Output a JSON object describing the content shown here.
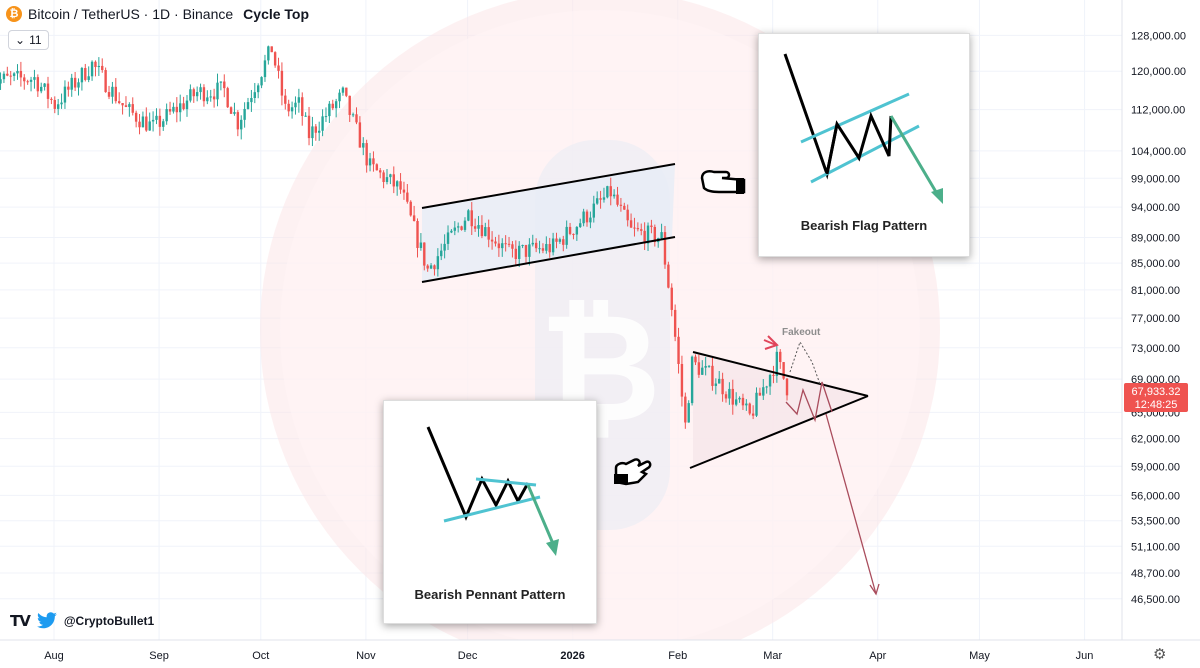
{
  "header": {
    "symbol": "Bitcoin / TetherUS · 1D · Binance",
    "title": "Cycle Top",
    "coin_icon": "₿",
    "interval_value": "11"
  },
  "watermark": {
    "brand": "TV",
    "handle": "@CryptoBullet1"
  },
  "cards": {
    "flag_caption": "Bearish Flag Pattern",
    "pennant_caption": "Bearish Pennant Pattern"
  },
  "annotations": {
    "fakeout": "Fakeout"
  },
  "price_badge": {
    "price": "67,933.32",
    "countdown": "12:48:25",
    "color": "#ef5350"
  },
  "colors": {
    "up": "#26a69a",
    "down": "#ef5350",
    "pattern_line": "#000000",
    "flag_teal": "#4fc3d1",
    "arrow_green": "#4caf8a",
    "projection": "#a94c5c"
  },
  "chart_data": {
    "type": "candlestick",
    "log_scale": true,
    "x_ticks": [
      "Aug",
      "Sep",
      "Oct",
      "Nov",
      "Dec",
      "2026",
      "Feb",
      "Mar",
      "Apr",
      "May",
      "Jun"
    ],
    "y_ticks": [
      "128,000.00",
      "120,000.00",
      "112,000.00",
      "104,000.00",
      "99,000.00",
      "94,000.00",
      "89,000.00",
      "85,000.00",
      "81,000.00",
      "77,000.00",
      "73,000.00",
      "69,000.00",
      "65,000.00",
      "62,000.00",
      "59,000.00",
      "56,000.00",
      "53,500.00",
      "51,100.00",
      "48,700.00",
      "46,500.00"
    ],
    "ylim": [
      45000,
      133000
    ],
    "price_path": [
      [
        "2025-07-15",
        118000
      ],
      [
        "2025-07-28",
        118500
      ],
      [
        "2025-08-03",
        113000
      ],
      [
        "2025-08-14",
        121500
      ],
      [
        "2025-08-24",
        112000
      ],
      [
        "2025-09-01",
        108500
      ],
      [
        "2025-09-14",
        115500
      ],
      [
        "2025-09-22",
        116000
      ],
      [
        "2025-09-26",
        109500
      ],
      [
        "2025-10-06",
        125000
      ],
      [
        "2025-10-10",
        112000
      ],
      [
        "2025-10-14",
        113000
      ],
      [
        "2025-10-17",
        107000
      ],
      [
        "2025-10-27",
        115000
      ],
      [
        "2025-11-04",
        101000
      ],
      [
        "2025-11-13",
        97000
      ],
      [
        "2025-11-21",
        84000
      ],
      [
        "2025-12-03",
        93000
      ],
      [
        "2025-12-15",
        86500
      ],
      [
        "2025-12-28",
        87500
      ],
      [
        "2026-01-14",
        96500
      ],
      [
        "2026-01-20",
        90000
      ],
      [
        "2026-01-29",
        89000
      ],
      [
        "2026-02-01",
        78500
      ],
      [
        "2026-02-05",
        63500
      ],
      [
        "2026-02-07",
        71000
      ],
      [
        "2026-02-14",
        69000
      ],
      [
        "2026-02-24",
        64500
      ],
      [
        "2026-03-04",
        71500
      ],
      [
        "2026-03-07",
        68000
      ]
    ]
  }
}
